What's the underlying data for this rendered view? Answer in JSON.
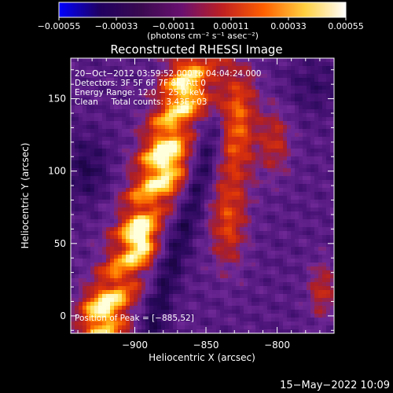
{
  "chart_data": {
    "type": "heatmap",
    "title": "Reconstructed RHESSI Image",
    "xlabel": "Heliocentric X (arcsec)",
    "ylabel": "Heliocentric Y (arcsec)",
    "xlim": [
      -945,
      -760
    ],
    "ylim": [
      -12,
      178
    ],
    "x_ticks": [
      -900,
      -850,
      -800
    ],
    "x_tick_labels": [
      "−900",
      "−850",
      "−800"
    ],
    "y_ticks": [
      0,
      50,
      100,
      150
    ],
    "y_tick_labels": [
      "0",
      "50",
      "100",
      "150"
    ],
    "colorbar": {
      "range": [
        -0.00055,
        0.00055
      ],
      "ticks": [
        -0.00055,
        -0.00033,
        -0.00011,
        0.00011,
        0.00033,
        0.00055
      ],
      "tick_labels": [
        "−0.00055",
        "−0.00033",
        "−0.00011",
        "0.00011",
        "0.00033",
        "0.00055"
      ],
      "unit_label": "(photons cm⁻² s⁻¹ asec⁻²)",
      "colors": [
        "#0000ff",
        "#200060",
        "#3a0a50",
        "#6a1070",
        "#c02020",
        "#ff6000",
        "#ffd040",
        "#ffffff"
      ]
    },
    "annotations": [
      "20−Oct−2012 03:59:52.000 to 04:04:24.000",
      "Detectors: 3F 5F 6F 7F 8F, Att 0",
      "Energy Range: 12.0 − 25.0 keV",
      "Clean     Total counts: 3.43E+03"
    ],
    "peak_label": "Position of Peak = [−885,52]",
    "peak": [
      -885,
      52
    ]
  },
  "footer_date": "15−May−2022 10:09"
}
